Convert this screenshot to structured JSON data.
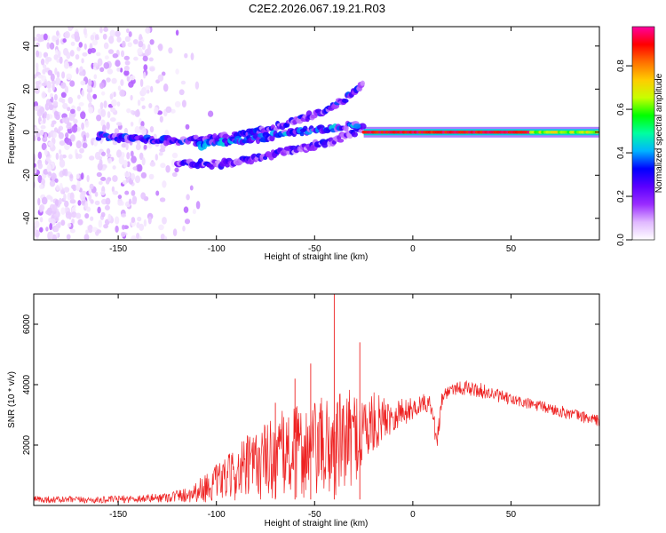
{
  "title": "C2E2.2026.067.19.21.R03",
  "chart_data": [
    {
      "type": "heatmap",
      "title": "C2E2.2026.067.19.21.R03",
      "xlabel": "Height of straight line (km)",
      "ylabel": "Frequency (Hz)",
      "xlim": [
        -193,
        95
      ],
      "ylim": [
        -50,
        49
      ],
      "xticks": [
        -150,
        -100,
        -50,
        0,
        50
      ],
      "yticks": [
        -40,
        -20,
        0,
        20,
        40
      ],
      "colorbar": {
        "label": "Normalized spectral amplitude",
        "range": [
          0.0,
          0.98
        ],
        "ticks": [
          0.0,
          0.2,
          0.4,
          0.6,
          0.8
        ],
        "colormap": [
          "#ffffff",
          "#e0b8ff",
          "#9a2cff",
          "#5a00ff",
          "#0000ff",
          "#00b4ff",
          "#00ffa0",
          "#00ff00",
          "#c8ff00",
          "#ffcc00",
          "#ff7000",
          "#ff0000",
          "#ff00a0"
        ]
      },
      "features": [
        {
          "name": "noise cloud",
          "x_range": [
            -193,
            -100
          ],
          "freq_range": [
            -50,
            49
          ],
          "amplitude": 0.05
        },
        {
          "name": "upper chirp branch",
          "x": [
            -160,
            -120,
            -100,
            -80,
            -60,
            -40,
            -25
          ],
          "freq": [
            -2,
            -4,
            -3,
            0,
            5,
            12,
            22
          ],
          "amplitude": 0.25
        },
        {
          "name": "lower chirp branch",
          "x": [
            -120,
            -100,
            -80,
            -60,
            -40,
            -25
          ],
          "freq": [
            -14,
            -15,
            -12,
            -8,
            -4,
            2
          ],
          "amplitude": 0.22
        },
        {
          "name": "middle branch",
          "x": [
            -110,
            -80,
            -60,
            -40,
            -28
          ],
          "freq": [
            -6,
            -3,
            0,
            2,
            4
          ],
          "amplitude": 0.3
        },
        {
          "name": "steady tone",
          "x_range": [
            -25,
            95
          ],
          "freq": 0,
          "amplitude": 0.98
        }
      ]
    },
    {
      "type": "line",
      "xlabel": "Height of straight line (km)",
      "ylabel": "SNR (10 * v/v)",
      "xlim": [
        -193,
        95
      ],
      "ylim": [
        0,
        7000
      ],
      "xticks": [
        -150,
        -100,
        -50,
        0,
        50
      ],
      "yticks": [
        2000,
        4000,
        6000
      ],
      "color": "#ee2222",
      "series": [
        {
          "name": "SNR",
          "envelope_x": [
            -193,
            -160,
            -130,
            -115,
            -105,
            -95,
            -85,
            -75,
            -65,
            -55,
            -45,
            -40,
            -35,
            -25,
            -15,
            -5,
            0,
            5,
            10,
            12,
            15,
            20,
            25,
            35,
            50,
            70,
            95
          ],
          "mean": [
            200,
            180,
            250,
            350,
            600,
            900,
            1200,
            1500,
            1700,
            1800,
            1900,
            2000,
            2100,
            2500,
            2900,
            3100,
            3200,
            3400,
            3300,
            2000,
            3600,
            3900,
            3900,
            3800,
            3500,
            3200,
            2800
          ],
          "spread": [
            120,
            110,
            150,
            250,
            500,
            700,
            1100,
            1300,
            1500,
            1600,
            1700,
            1800,
            1700,
            1400,
            700,
            500,
            350,
            300,
            300,
            400,
            300,
            250,
            250,
            250,
            200,
            200,
            200
          ],
          "peaks": [
            [
              -40,
              7000
            ],
            [
              -27,
              5400
            ],
            [
              -52,
              4700
            ],
            [
              -60,
              4200
            ],
            [
              -70,
              3400
            ]
          ]
        }
      ]
    }
  ]
}
